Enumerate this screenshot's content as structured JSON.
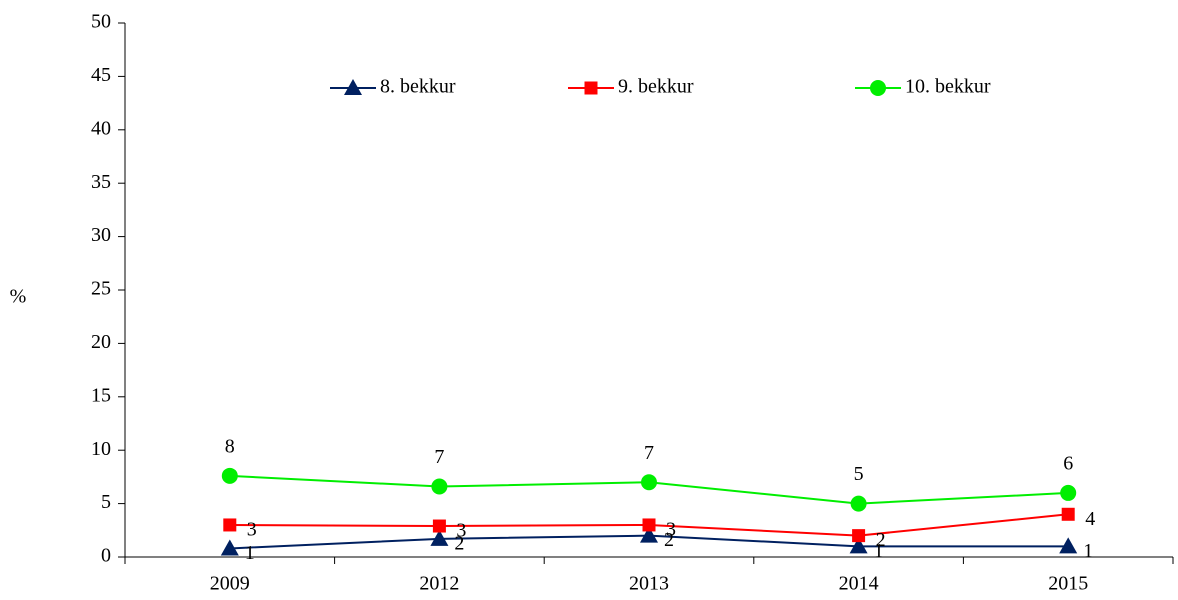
{
  "chart_data": {
    "type": "line",
    "categories": [
      "2009",
      "2012",
      "2013",
      "2014",
      "2015"
    ],
    "series": [
      {
        "name": "8. bekkur",
        "color": "#002060",
        "marker": "triangle",
        "values": [
          0.8,
          1.7,
          2.0,
          1.0,
          1.0
        ],
        "value_labels": [
          "1",
          "2",
          "2",
          "1",
          "1"
        ]
      },
      {
        "name": "9. bekkur",
        "color": "#ff0000",
        "marker": "square",
        "values": [
          3.0,
          2.9,
          3.0,
          2.0,
          4.0
        ],
        "value_labels": [
          "3",
          "3",
          "3",
          "2",
          "4"
        ]
      },
      {
        "name": "10. bekkur",
        "color": "#00ee00",
        "marker": "circle",
        "values": [
          7.6,
          6.6,
          7.0,
          5.0,
          6.0
        ],
        "value_labels": [
          "8",
          "7",
          "7",
          "5",
          "6"
        ]
      }
    ],
    "ylabel": "%",
    "ylim": [
      0,
      50
    ],
    "yticks": [
      0,
      5,
      10,
      15,
      20,
      25,
      30,
      35,
      40,
      45,
      50
    ],
    "grid": false,
    "legend": "top"
  }
}
